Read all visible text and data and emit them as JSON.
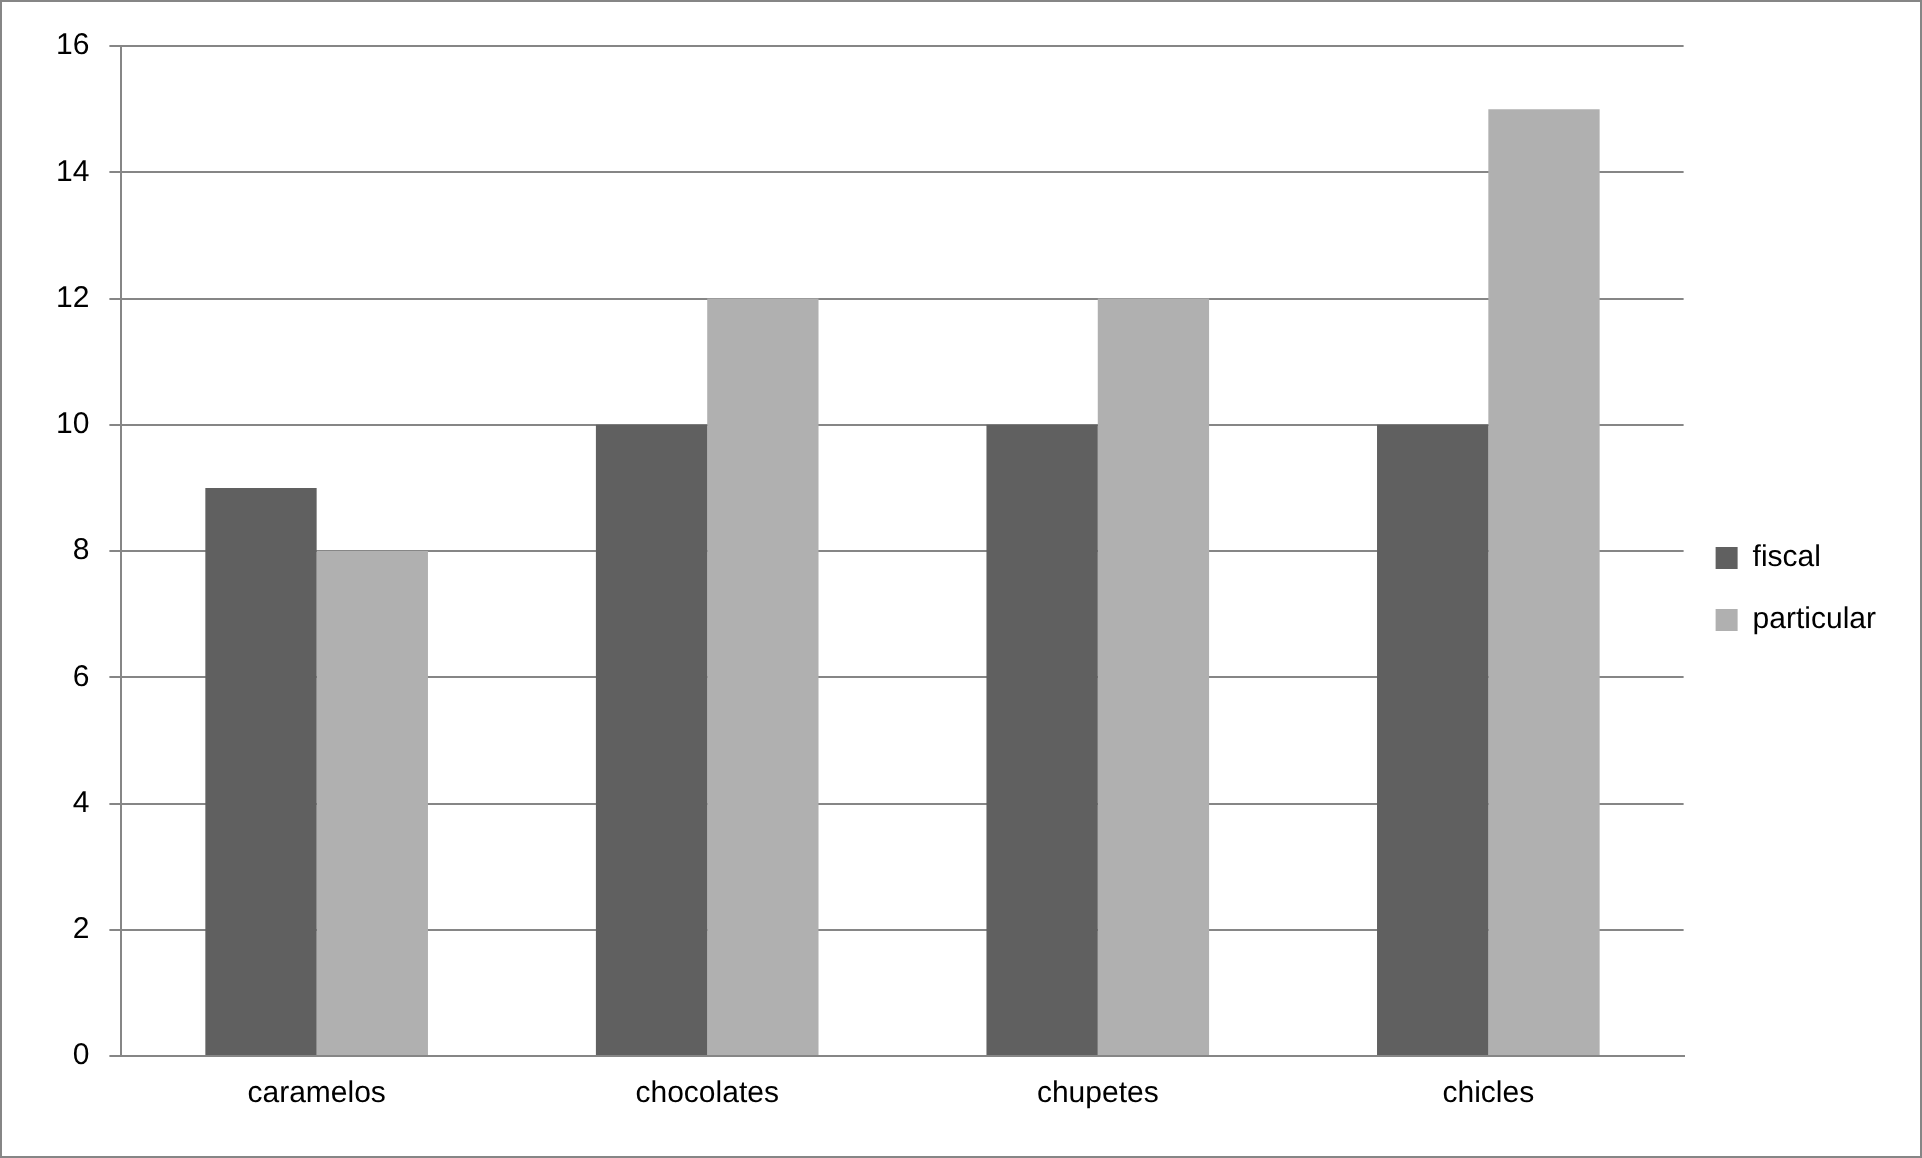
{
  "chart_data": {
    "type": "bar",
    "categories": [
      "caramelos",
      "chocolates",
      "chupetes",
      "chicles"
    ],
    "series": [
      {
        "name": "fiscal",
        "color": "#606060",
        "values": [
          9,
          10,
          10,
          10
        ]
      },
      {
        "name": "particular",
        "color": "#b0b0b0",
        "values": [
          8,
          12,
          12,
          15
        ]
      }
    ],
    "ylim": [
      0,
      16
    ],
    "yticks": [
      0,
      2,
      4,
      6,
      8,
      10,
      12,
      14,
      16
    ],
    "grid": "y",
    "legend": "right"
  }
}
